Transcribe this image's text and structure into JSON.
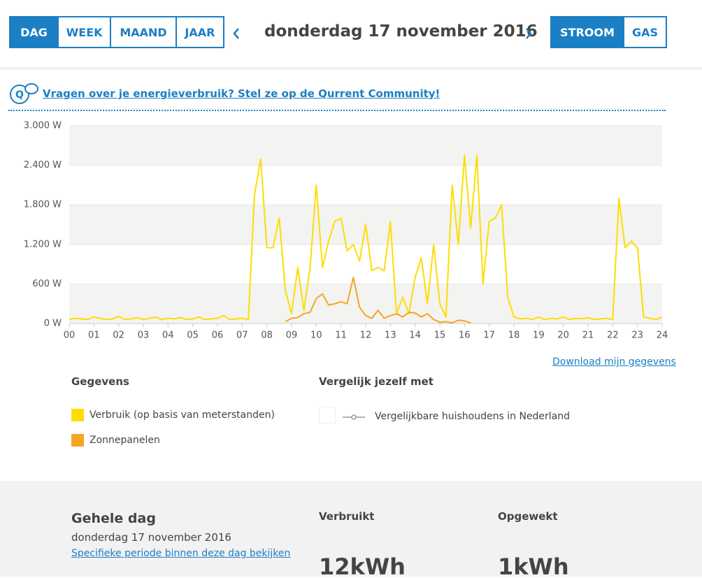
{
  "period_tabs": [
    "DAG",
    "WEEK",
    "MAAND",
    "JAAR"
  ],
  "date_label": "donderdag 17 november 2016",
  "energy_tabs": [
    "STROOM",
    "GAS"
  ],
  "community_link": "Vragen over je energieverbruik? Stel ze op de Qurrent Community!",
  "chart_data": {
    "type": "line",
    "x": [
      0,
      0.25,
      0.5,
      0.75,
      1,
      1.25,
      1.5,
      1.75,
      2,
      2.25,
      2.5,
      2.75,
      3,
      3.25,
      3.5,
      3.75,
      4,
      4.25,
      4.5,
      4.75,
      5,
      5.25,
      5.5,
      5.75,
      6,
      6.25,
      6.5,
      6.75,
      7,
      7.25,
      7.5,
      7.75,
      8,
      8.25,
      8.5,
      8.75,
      9,
      9.25,
      9.5,
      9.75,
      10,
      10.25,
      10.5,
      10.75,
      11,
      11.25,
      11.5,
      11.75,
      12,
      12.25,
      12.5,
      12.75,
      13,
      13.25,
      13.5,
      13.75,
      14,
      14.25,
      14.5,
      14.75,
      15,
      15.25,
      15.5,
      15.75,
      16,
      16.25,
      16.5,
      16.75,
      17,
      17.25,
      17.5,
      17.75,
      18,
      18.25,
      18.5,
      18.75,
      19,
      19.25,
      19.5,
      19.75,
      20,
      20.25,
      20.5,
      20.75,
      21,
      21.25,
      21.5,
      21.75,
      22,
      22.25,
      22.5,
      22.75,
      23,
      23.25,
      23.5,
      23.75,
      24
    ],
    "series": [
      {
        "name": "Verbruik (op basis van meterstanden)",
        "color": "#ffdd00",
        "values": [
          60,
          80,
          70,
          60,
          100,
          80,
          60,
          70,
          110,
          60,
          70,
          90,
          60,
          80,
          100,
          60,
          80,
          70,
          90,
          60,
          70,
          100,
          60,
          70,
          80,
          120,
          60,
          70,
          80,
          60,
          1950,
          2500,
          1150,
          1150,
          1600,
          500,
          150,
          850,
          200,
          850,
          2100,
          850,
          1250,
          1550,
          1600,
          1100,
          1200,
          950,
          1500,
          800,
          850,
          800,
          1550,
          150,
          400,
          150,
          700,
          1000,
          300,
          1200,
          300,
          100,
          2100,
          1200,
          2550,
          1450,
          2550,
          600,
          1550,
          1600,
          1800,
          400,
          100,
          70,
          80,
          60,
          100,
          60,
          80,
          70,
          100,
          60,
          80,
          70,
          90,
          60,
          70,
          80,
          60,
          1900,
          1150,
          1250,
          1150,
          100,
          80,
          60,
          100
        ]
      },
      {
        "name": "Zonnepanelen",
        "color": "#f5a623",
        "values": [
          null,
          null,
          null,
          null,
          null,
          null,
          null,
          null,
          null,
          null,
          null,
          null,
          null,
          null,
          null,
          null,
          null,
          null,
          null,
          null,
          null,
          null,
          null,
          null,
          null,
          null,
          null,
          null,
          null,
          null,
          null,
          null,
          null,
          null,
          null,
          30,
          80,
          90,
          150,
          170,
          380,
          450,
          280,
          300,
          330,
          300,
          700,
          250,
          120,
          80,
          200,
          80,
          120,
          150,
          100,
          170,
          160,
          100,
          150,
          60,
          20,
          30,
          10,
          50,
          40,
          10,
          null,
          null,
          null,
          null,
          null,
          null,
          null,
          null,
          null,
          null,
          null,
          null,
          null,
          null,
          null,
          null,
          null,
          null,
          null,
          null,
          null,
          null,
          null,
          null,
          null,
          null,
          null,
          null,
          null,
          null,
          null
        ]
      }
    ],
    "xlim": [
      0,
      24
    ],
    "xticks": [
      {
        "value": 0,
        "label": "00"
      },
      {
        "value": 1,
        "label": "01"
      },
      {
        "value": 2,
        "label": "02"
      },
      {
        "value": 3,
        "label": "03"
      },
      {
        "value": 4,
        "label": "04"
      },
      {
        "value": 5,
        "label": "05"
      },
      {
        "value": 6,
        "label": "06"
      },
      {
        "value": 7,
        "label": "07"
      },
      {
        "value": 8,
        "label": "08"
      },
      {
        "value": 9,
        "label": "09"
      },
      10,
      11,
      12,
      13,
      14,
      15,
      16,
      17,
      18,
      19,
      20,
      21,
      22,
      23,
      24
    ],
    "ylim": [
      0,
      3000
    ],
    "yticks": [
      {
        "value": 0,
        "label": "0 W"
      },
      {
        "value": 600,
        "label": "600 W"
      },
      {
        "value": 1200,
        "label": "1.200 W"
      },
      {
        "value": 1800,
        "label": "1.800 W"
      },
      {
        "value": 2400,
        "label": "2.400 W"
      },
      {
        "value": 3000,
        "label": "3.000 W"
      }
    ],
    "grid": true
  },
  "download_link": "Download mijn gegevens",
  "legend": {
    "data_title": "Gegevens",
    "compare_title": "Vergelijk jezelf met",
    "compare_item": "Vergelijkbare huishoudens in Nederland"
  },
  "summary": {
    "title": "Gehele dag",
    "date": "donderdag 17 november 2016",
    "link": "Specifieke periode binnen deze dag bekijken",
    "used_label": "Verbruikt",
    "used_value": "12kWh",
    "generated_label": "Opgewekt",
    "generated_value": "1kWh"
  }
}
